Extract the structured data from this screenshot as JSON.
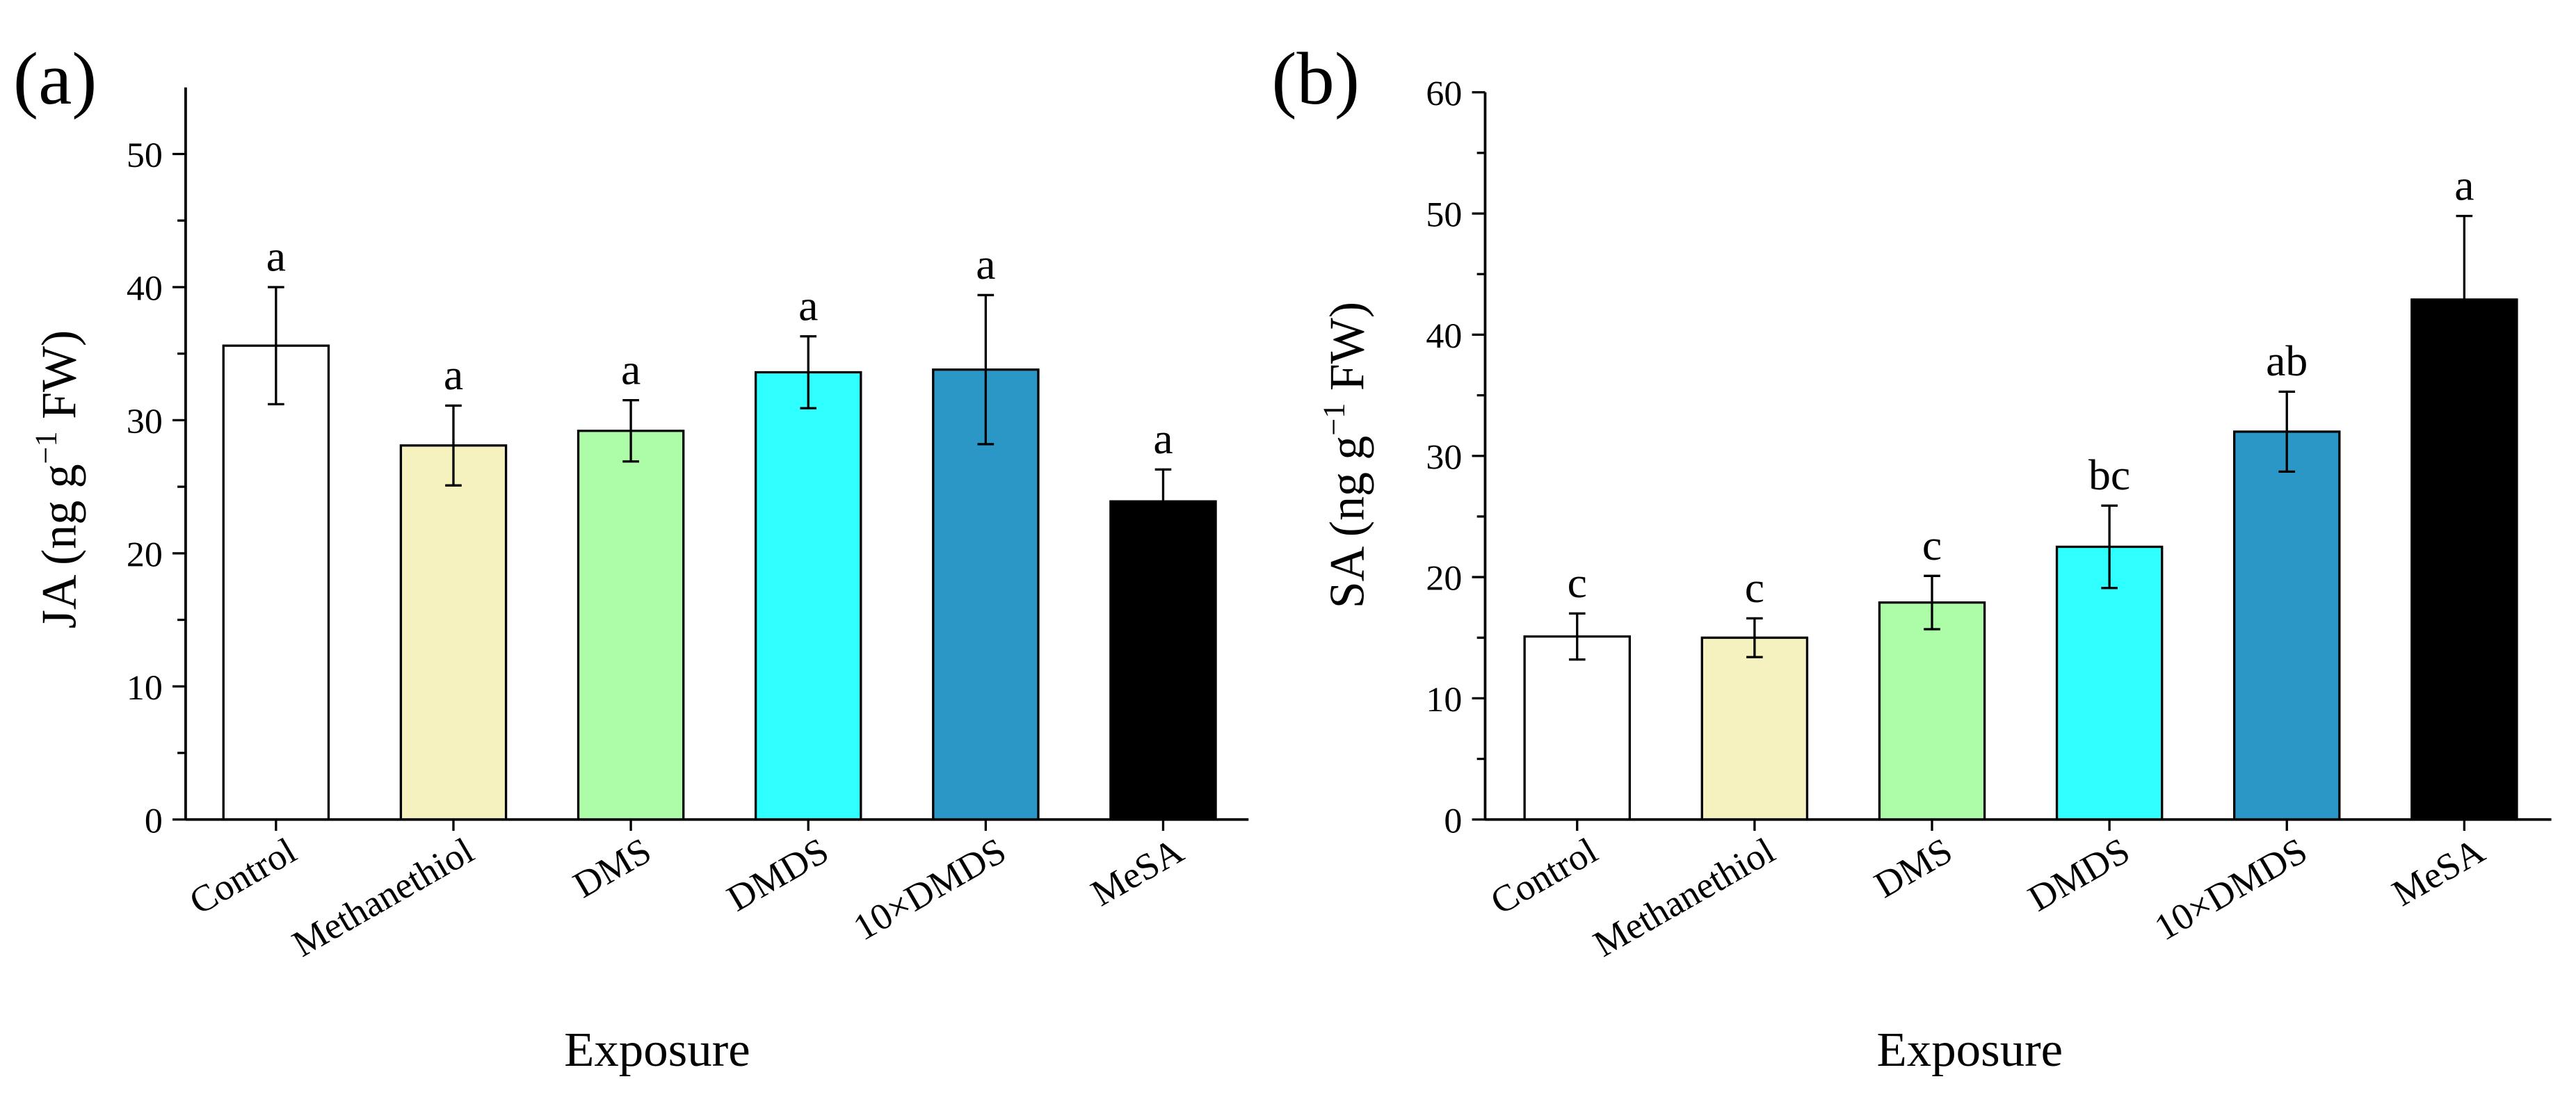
{
  "chart_data": [
    {
      "type": "bar",
      "panel_label": "(a)",
      "categories": [
        "Control",
        "Methanethiol",
        "DMS",
        "DMDS",
        "10×DMDS",
        "MeSA"
      ],
      "values": [
        35.6,
        28.1,
        29.2,
        33.6,
        33.8,
        23.9
      ],
      "errors": [
        4.4,
        3.0,
        2.3,
        2.7,
        5.6,
        2.4
      ],
      "significance": [
        "a",
        "a",
        "a",
        "a",
        "a",
        "a"
      ],
      "colors": [
        "#FFFFFF",
        "#F5F2C0",
        "#ADFDA8",
        "#2FFFFF",
        "#2B97C6",
        "#000000"
      ],
      "xlabel": "Exposure",
      "ylabel_main": "JA (ng g",
      "ylabel_sup": "−1",
      "ylabel_end": " FW)",
      "ylim": [
        0,
        55
      ],
      "yticks": [
        0,
        10,
        20,
        30,
        40,
        50
      ],
      "grid": false
    },
    {
      "type": "bar",
      "panel_label": "(b)",
      "categories": [
        "Control",
        "Methanethiol",
        "DMS",
        "DMDS",
        "10×DMDS",
        "MeSA"
      ],
      "values": [
        15.1,
        15.0,
        17.9,
        22.5,
        32.0,
        42.9
      ],
      "errors": [
        1.9,
        1.6,
        2.2,
        3.4,
        3.3,
        6.9
      ],
      "significance": [
        "c",
        "c",
        "c",
        "bc",
        "ab",
        "a"
      ],
      "colors": [
        "#FFFFFF",
        "#F5F2C0",
        "#ADFDA8",
        "#2FFFFF",
        "#2B97C6",
        "#000000"
      ],
      "xlabel": "Exposure",
      "ylabel_main": "SA (ng g",
      "ylabel_sup": "−1",
      "ylabel_end": " FW)",
      "ylim": [
        0,
        60
      ],
      "yticks": [
        0,
        10,
        20,
        30,
        40,
        50,
        60
      ],
      "grid": false
    }
  ]
}
